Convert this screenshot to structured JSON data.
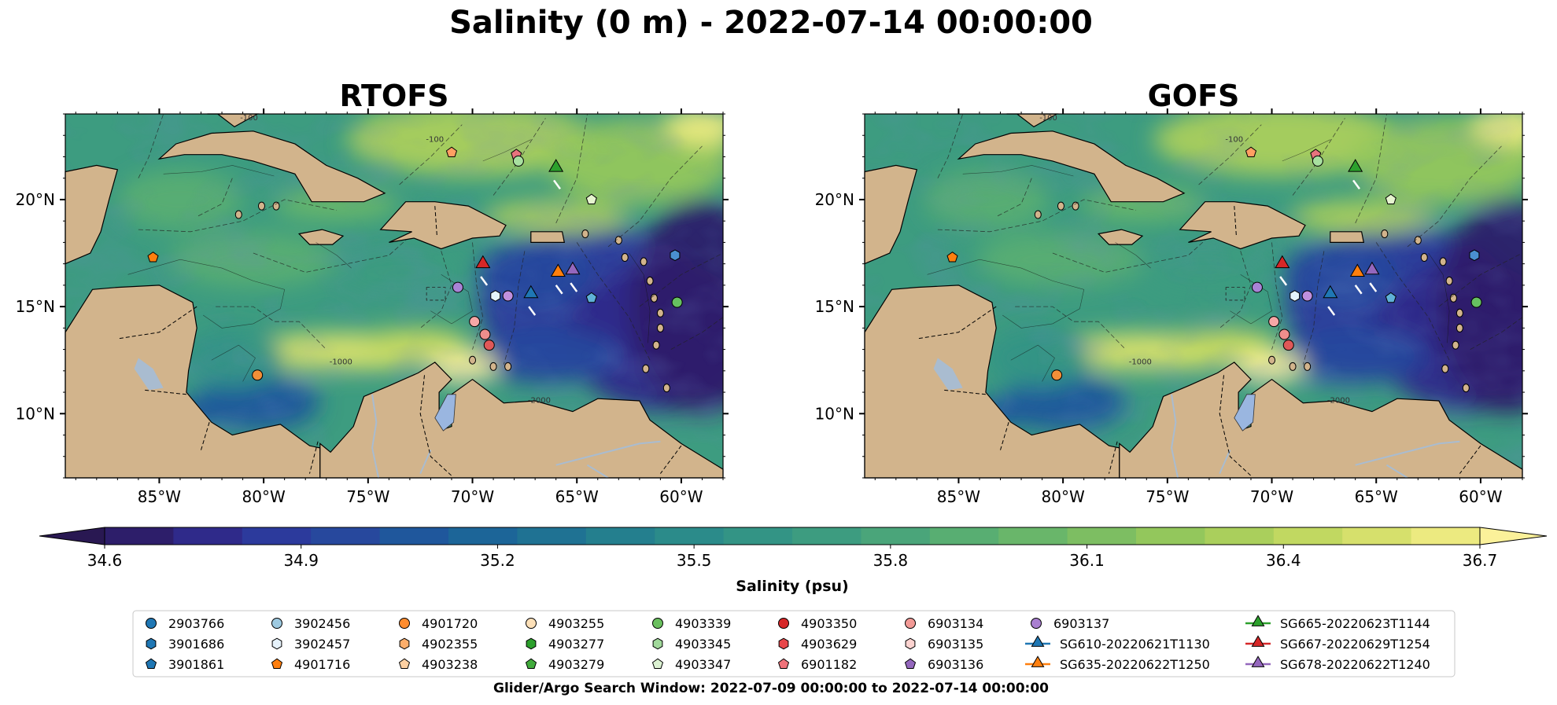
{
  "title": "Salinity (0 m) - 2022-07-14 00:00:00",
  "footer": "Glider/Argo Search Window: 2022-07-09 00:00:00 to 2022-07-14 00:00:00",
  "chart_data": {
    "type": "heatmap",
    "panels": [
      {
        "title": "RTOFS"
      },
      {
        "title": "GOFS"
      }
    ],
    "lon_range": [
      -89.5,
      -58.0
    ],
    "lat_range": [
      7.0,
      24.0
    ],
    "x_ticks": [
      {
        "value": -85,
        "label": "85°W"
      },
      {
        "value": -80,
        "label": "80°W"
      },
      {
        "value": -75,
        "label": "75°W"
      },
      {
        "value": -70,
        "label": "70°W"
      },
      {
        "value": -65,
        "label": "65°W"
      },
      {
        "value": -60,
        "label": "60°W"
      }
    ],
    "y_ticks": [
      {
        "value": 20,
        "label": "20°N"
      },
      {
        "value": 15,
        "label": "15°N"
      },
      {
        "value": 10,
        "label": "10°N"
      }
    ],
    "colorbar": {
      "label": "Salinity (psu)",
      "min": 34.6,
      "max": 36.7,
      "extend": "both",
      "ticks": [
        {
          "value": 34.6,
          "label": "34.6"
        },
        {
          "value": 34.9,
          "label": "34.9"
        },
        {
          "value": 35.2,
          "label": "35.2"
        },
        {
          "value": 35.5,
          "label": "35.5"
        },
        {
          "value": 35.8,
          "label": "35.8"
        },
        {
          "value": 36.1,
          "label": "36.1"
        },
        {
          "value": 36.4,
          "label": "36.4"
        },
        {
          "value": 36.7,
          "label": "36.7"
        }
      ],
      "colors": [
        "#2d1e6a",
        "#2f2a8a",
        "#2c3a9c",
        "#27489d",
        "#1f579c",
        "#1c6598",
        "#1f7293",
        "#247f8e",
        "#2b8b8a",
        "#339485",
        "#3d9c80",
        "#4aa57a",
        "#58ae72",
        "#69b66a",
        "#7dbe62",
        "#93c75c",
        "#aacf5c",
        "#c1d861",
        "#d6e06c",
        "#ecea80"
      ],
      "under_color": "#291852",
      "over_color": "#fbf19a"
    },
    "contour_labels": [
      "-100",
      "-1000",
      "-2000"
    ],
    "colors": {
      "land": "#d2b48c",
      "lake": "#9ab6e0",
      "river": "#a9bcd0"
    },
    "markers": [
      {
        "lon": -66.0,
        "lat": 21.5,
        "shape": "triangle",
        "color": "#2ca02c"
      },
      {
        "lon": -69.5,
        "lat": 17.0,
        "shape": "triangle",
        "color": "#d62728"
      },
      {
        "lon": -65.9,
        "lat": 16.6,
        "shape": "triangle",
        "color": "#ff7f0e"
      },
      {
        "lon": -65.2,
        "lat": 16.7,
        "shape": "triangle",
        "color": "#9467bd"
      },
      {
        "lon": -67.2,
        "lat": 15.6,
        "shape": "triangle",
        "color": "#1f77b4"
      },
      {
        "lon": -71.0,
        "lat": 22.2,
        "shape": "pentagon",
        "color": "#ff9f62"
      },
      {
        "lon": -67.9,
        "lat": 22.1,
        "shape": "pentagon",
        "color": "#e8737d"
      },
      {
        "lon": -67.8,
        "lat": 21.8,
        "shape": "circle",
        "color": "#a8e0a0"
      },
      {
        "lon": -64.3,
        "lat": 20.0,
        "shape": "pentagon",
        "color": "#e6f5cf"
      },
      {
        "lon": -60.3,
        "lat": 17.4,
        "shape": "hexagon",
        "color": "#4a8fd0"
      },
      {
        "lon": -60.2,
        "lat": 15.2,
        "shape": "circle",
        "color": "#66c060"
      },
      {
        "lon": -64.3,
        "lat": 15.4,
        "shape": "pentagon",
        "color": "#5fb1d8"
      },
      {
        "lon": -85.3,
        "lat": 17.3,
        "shape": "pentagon",
        "color": "#ff7f0e"
      },
      {
        "lon": -80.3,
        "lat": 11.8,
        "shape": "circle",
        "color": "#f28f38"
      },
      {
        "lon": -70.7,
        "lat": 15.9,
        "shape": "circle",
        "color": "#a983d6"
      },
      {
        "lon": -68.9,
        "lat": 15.5,
        "shape": "hexagon",
        "color": "#e4f4fb"
      },
      {
        "lon": -68.3,
        "lat": 15.5,
        "shape": "circle",
        "color": "#c090de"
      },
      {
        "lon": -69.9,
        "lat": 14.3,
        "shape": "circle",
        "color": "#f7a7a6"
      },
      {
        "lon": -69.4,
        "lat": 13.7,
        "shape": "circle",
        "color": "#ee8e8c"
      },
      {
        "lon": -69.2,
        "lat": 13.2,
        "shape": "circle",
        "color": "#e05858"
      }
    ],
    "legend": {
      "placement": "bottom",
      "columns": [
        [
          {
            "label": "2903766",
            "shape": "circle",
            "color": "#1f77b4"
          },
          {
            "label": "3901686",
            "shape": "hexagon",
            "color": "#1f77b4"
          },
          {
            "label": "3901861",
            "shape": "pentagon",
            "color": "#1f77b4"
          }
        ],
        [
          {
            "label": "3902456",
            "shape": "circle",
            "color": "#9ecae1"
          },
          {
            "label": "3902457",
            "shape": "hexagon",
            "color": "#e6f2fb"
          },
          {
            "label": "4901716",
            "shape": "pentagon",
            "color": "#ff7f0e"
          }
        ],
        [
          {
            "label": "4901720",
            "shape": "circle",
            "color": "#ff8c2e"
          },
          {
            "label": "4902355",
            "shape": "hexagon",
            "color": "#fdae6b"
          },
          {
            "label": "4903238",
            "shape": "pentagon",
            "color": "#fdd0a2"
          }
        ],
        [
          {
            "label": "4903255",
            "shape": "circle",
            "color": "#fde0b8"
          },
          {
            "label": "4903277",
            "shape": "hexagon",
            "color": "#2ca02c"
          },
          {
            "label": "4903279",
            "shape": "pentagon",
            "color": "#41ab3c"
          }
        ],
        [
          {
            "label": "4903339",
            "shape": "circle",
            "color": "#6abf5e"
          },
          {
            "label": "4903345",
            "shape": "hexagon",
            "color": "#a1d99b"
          },
          {
            "label": "4903347",
            "shape": "pentagon",
            "color": "#dcf2d2"
          }
        ],
        [
          {
            "label": "4903350",
            "shape": "circle",
            "color": "#d62728"
          },
          {
            "label": "4903629",
            "shape": "hexagon",
            "color": "#e8474a"
          },
          {
            "label": "6901182",
            "shape": "pentagon",
            "color": "#f0727a"
          }
        ],
        [
          {
            "label": "6903134",
            "shape": "circle",
            "color": "#f29a96"
          },
          {
            "label": "6903135",
            "shape": "hexagon",
            "color": "#fcd3d0"
          },
          {
            "label": "6903136",
            "shape": "pentagon",
            "color": "#9467bd"
          }
        ],
        [
          {
            "label": "6903137",
            "shape": "circle",
            "color": "#a97fd0"
          },
          {
            "label": "SG610-20220621T1130",
            "shape": "triangle-line",
            "color": "#1f77b4"
          },
          {
            "label": "SG635-20220622T1250",
            "shape": "triangle-line",
            "color": "#ff7f0e"
          }
        ],
        [
          {
            "label": "SG665-20220623T1144",
            "shape": "triangle-line",
            "color": "#2ca02c"
          },
          {
            "label": "SG667-20220629T1254",
            "shape": "triangle-line",
            "color": "#d62728"
          },
          {
            "label": "SG678-20220622T1240",
            "shape": "triangle-line",
            "color": "#9467bd"
          }
        ]
      ]
    }
  }
}
